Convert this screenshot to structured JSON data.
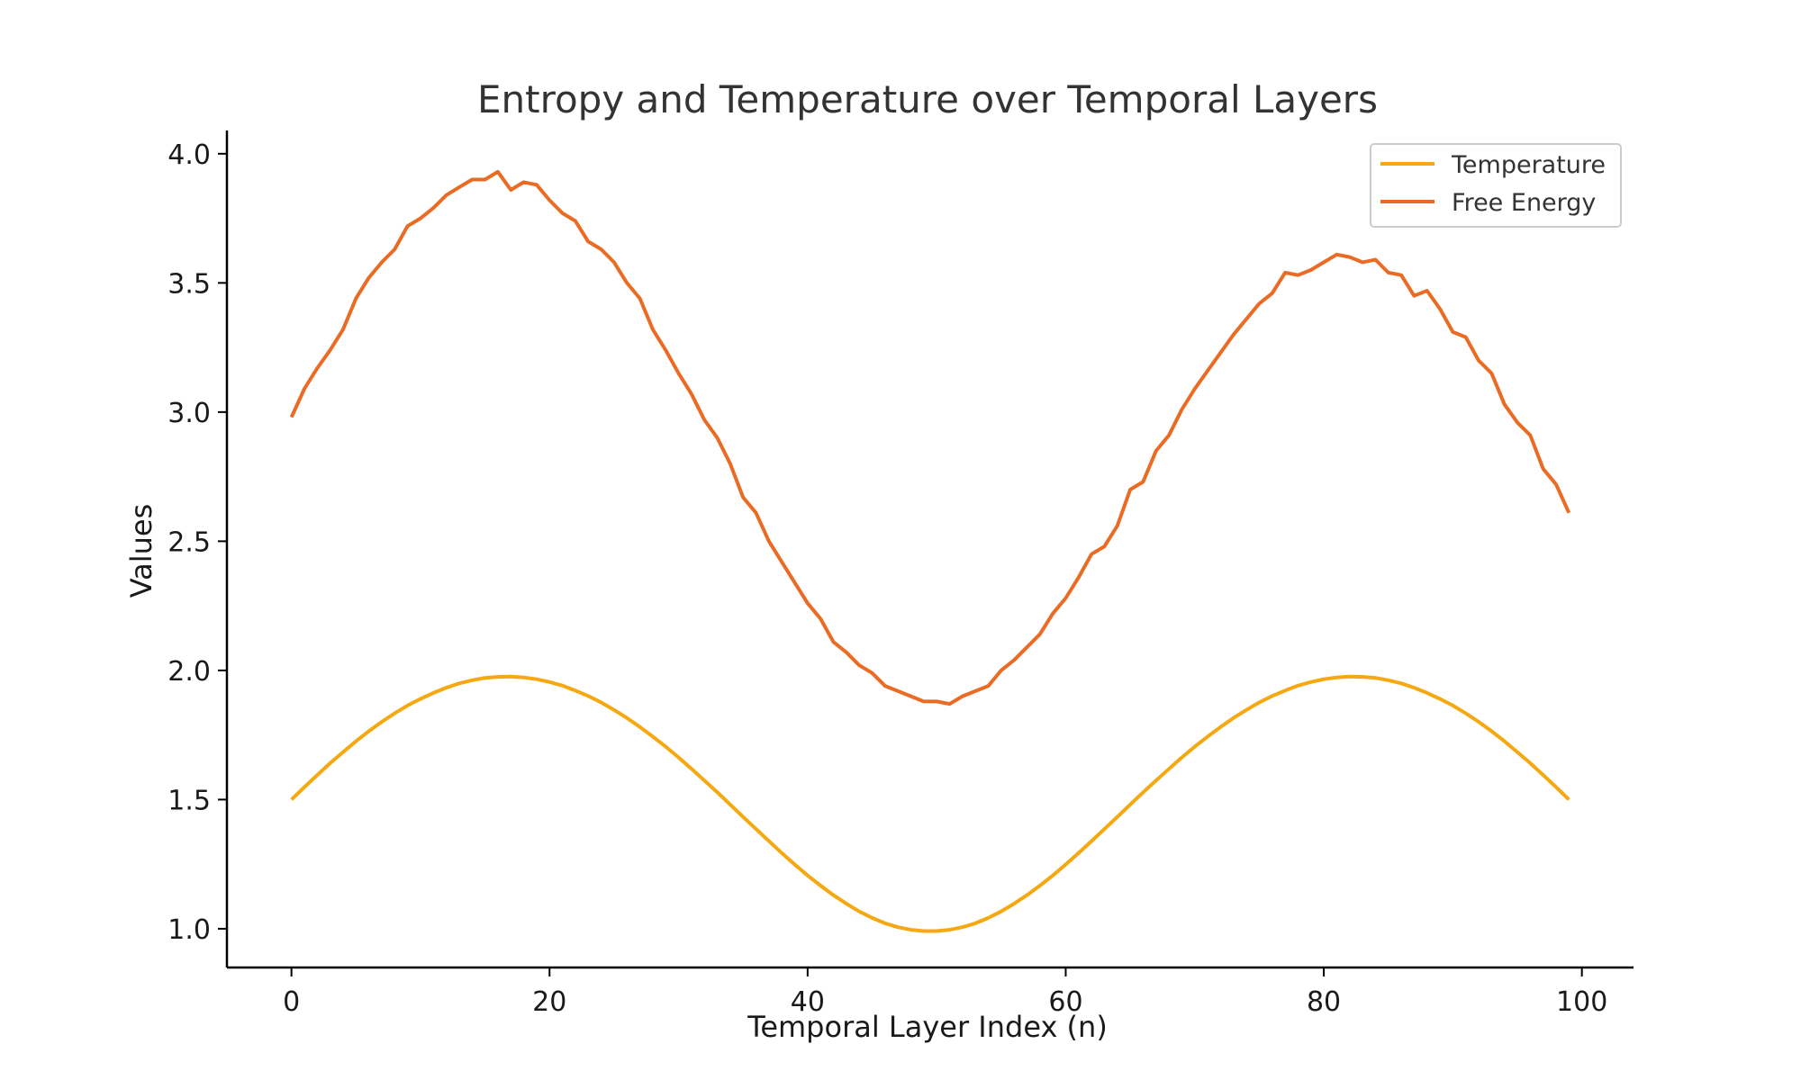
{
  "chart_data": {
    "type": "line",
    "title": "Entropy and Temperature over Temporal Layers",
    "xlabel": "Temporal Layer Index (n)",
    "ylabel": "Values",
    "xlim": [
      -5,
      104
    ],
    "ylim": [
      0.85,
      4.09
    ],
    "xticks": [
      0,
      20,
      40,
      60,
      80,
      100
    ],
    "yticks": [
      1.0,
      1.5,
      2.0,
      2.5,
      3.0,
      3.5,
      4.0
    ],
    "grid": false,
    "legend_position": "top-right",
    "series": [
      {
        "name": "Temperature",
        "color": "#f5a80f",
        "x": [
          0,
          1,
          2,
          3,
          4,
          5,
          6,
          7,
          8,
          9,
          10,
          11,
          12,
          13,
          14,
          15,
          16,
          17,
          18,
          19,
          20,
          21,
          22,
          23,
          24,
          25,
          26,
          27,
          28,
          29,
          30,
          31,
          32,
          33,
          34,
          35,
          36,
          37,
          38,
          39,
          40,
          41,
          42,
          43,
          44,
          45,
          46,
          47,
          48,
          49,
          50,
          51,
          52,
          53,
          54,
          55,
          56,
          57,
          58,
          59,
          60,
          61,
          62,
          63,
          64,
          65,
          66,
          67,
          68,
          69,
          70,
          71,
          72,
          73,
          74,
          75,
          76,
          77,
          78,
          79,
          80,
          81,
          82,
          83,
          84,
          85,
          86,
          87,
          88,
          89,
          90,
          91,
          92,
          93,
          94,
          95,
          96,
          97,
          98,
          99
        ],
        "values": [
          1.5,
          1.548,
          1.595,
          1.641,
          1.684,
          1.726,
          1.765,
          1.801,
          1.834,
          1.864,
          1.89,
          1.913,
          1.933,
          1.95,
          1.962,
          1.971,
          1.975,
          1.976,
          1.973,
          1.966,
          1.955,
          1.941,
          1.922,
          1.901,
          1.876,
          1.847,
          1.816,
          1.781,
          1.744,
          1.705,
          1.663,
          1.619,
          1.574,
          1.528,
          1.481,
          1.433,
          1.386,
          1.339,
          1.293,
          1.249,
          1.206,
          1.167,
          1.13,
          1.097,
          1.067,
          1.042,
          1.021,
          1.006,
          0.996,
          0.991,
          0.991,
          0.996,
          1.006,
          1.021,
          1.042,
          1.067,
          1.097,
          1.13,
          1.167,
          1.206,
          1.249,
          1.293,
          1.339,
          1.386,
          1.433,
          1.481,
          1.528,
          1.574,
          1.619,
          1.663,
          1.705,
          1.744,
          1.781,
          1.816,
          1.847,
          1.876,
          1.901,
          1.922,
          1.941,
          1.955,
          1.966,
          1.973,
          1.976,
          1.975,
          1.971,
          1.962,
          1.95,
          1.933,
          1.913,
          1.89,
          1.864,
          1.834,
          1.801,
          1.765,
          1.726,
          1.684,
          1.641,
          1.595,
          1.548,
          1.5
        ]
      },
      {
        "name": "Free Energy",
        "color": "#ea6c24",
        "x": [
          0,
          1,
          2,
          3,
          4,
          5,
          6,
          7,
          8,
          9,
          10,
          11,
          12,
          13,
          14,
          15,
          16,
          17,
          18,
          19,
          20,
          21,
          22,
          23,
          24,
          25,
          26,
          27,
          28,
          29,
          30,
          31,
          32,
          33,
          34,
          35,
          36,
          37,
          38,
          39,
          40,
          41,
          42,
          43,
          44,
          45,
          46,
          47,
          48,
          49,
          50,
          51,
          52,
          53,
          54,
          55,
          56,
          57,
          58,
          59,
          60,
          61,
          62,
          63,
          64,
          65,
          66,
          67,
          68,
          69,
          70,
          71,
          72,
          73,
          74,
          75,
          76,
          77,
          78,
          79,
          80,
          81,
          82,
          83,
          84,
          85,
          86,
          87,
          88,
          89,
          90,
          91,
          92,
          93,
          94,
          95,
          96,
          97,
          98,
          99
        ],
        "values": [
          2.98,
          3.09,
          3.17,
          3.24,
          3.32,
          3.44,
          3.52,
          3.58,
          3.63,
          3.72,
          3.75,
          3.79,
          3.84,
          3.87,
          3.9,
          3.9,
          3.93,
          3.86,
          3.89,
          3.88,
          3.82,
          3.77,
          3.74,
          3.66,
          3.63,
          3.58,
          3.5,
          3.44,
          3.32,
          3.24,
          3.15,
          3.07,
          2.97,
          2.9,
          2.8,
          2.67,
          2.61,
          2.5,
          2.42,
          2.34,
          2.26,
          2.2,
          2.11,
          2.07,
          2.02,
          1.99,
          1.94,
          1.92,
          1.9,
          1.88,
          1.88,
          1.87,
          1.9,
          1.92,
          1.94,
          2,
          2.04,
          2.09,
          2.14,
          2.22,
          2.28,
          2.36,
          2.45,
          2.48,
          2.56,
          2.7,
          2.73,
          2.85,
          2.91,
          3.01,
          3.09,
          3.16,
          3.23,
          3.3,
          3.36,
          3.42,
          3.46,
          3.54,
          3.53,
          3.55,
          3.58,
          3.61,
          3.6,
          3.58,
          3.59,
          3.54,
          3.53,
          3.45,
          3.47,
          3.4,
          3.31,
          3.29,
          3.2,
          3.15,
          3.03,
          2.96,
          2.91,
          2.78,
          2.72,
          2.61
        ]
      }
    ]
  }
}
